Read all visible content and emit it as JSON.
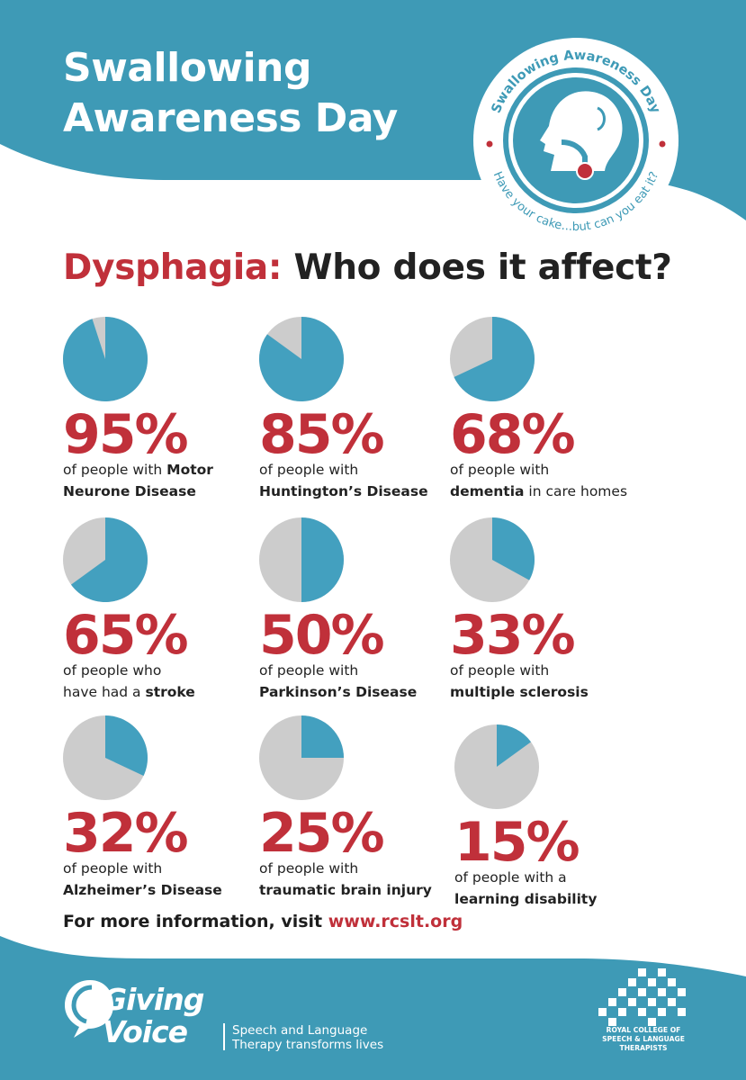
{
  "header": {
    "title_line1": "Swallowing",
    "title_line2": "Awareness Day",
    "bg_color": "#3e9ab6"
  },
  "badge": {
    "top_text": "Swallowing Awareness Day",
    "bottom_text": "Have your cake...but can you eat it?",
    "ring_color": "#3e9ab6",
    "dot_color": "#c0303a"
  },
  "subheading": {
    "highlight": "Dysphagia:",
    "rest": "Who does it affect?"
  },
  "colors": {
    "pie_fill": "#43a0bf",
    "pie_remainder": "#cccccc",
    "accent_red": "#c0303a",
    "text_dark": "#222222"
  },
  "stats": [
    {
      "percent_label": "95%",
      "value": 95,
      "line1_pre": "of people with ",
      "line1_bold": "Motor",
      "line1_post": "",
      "line2_pre": "",
      "line2_bold": "Neurone Disease",
      "line2_post": ""
    },
    {
      "percent_label": "85%",
      "value": 85,
      "line1_pre": "of people with",
      "line1_bold": "",
      "line1_post": "",
      "line2_pre": "",
      "line2_bold": "Huntington’s Disease",
      "line2_post": ""
    },
    {
      "percent_label": "68%",
      "value": 68,
      "line1_pre": "of people with",
      "line1_bold": "",
      "line1_post": "",
      "line2_pre": "",
      "line2_bold": "dementia",
      "line2_post": " in care homes"
    },
    {
      "percent_label": "65%",
      "value": 65,
      "line1_pre": "of people who",
      "line1_bold": "",
      "line1_post": "",
      "line2_pre": "have had a ",
      "line2_bold": "stroke",
      "line2_post": ""
    },
    {
      "percent_label": "50%",
      "value": 50,
      "line1_pre": "of people with",
      "line1_bold": "",
      "line1_post": "",
      "line2_pre": "",
      "line2_bold": "Parkinson’s Disease",
      "line2_post": ""
    },
    {
      "percent_label": "33%",
      "value": 33,
      "line1_pre": "of people with",
      "line1_bold": "",
      "line1_post": "",
      "line2_pre": "",
      "line2_bold": "multiple sclerosis",
      "line2_post": ""
    },
    {
      "percent_label": "32%",
      "value": 32,
      "line1_pre": "of people with",
      "line1_bold": "",
      "line1_post": "",
      "line2_pre": "",
      "line2_bold": "Alzheimer’s Disease",
      "line2_post": ""
    },
    {
      "percent_label": "25%",
      "value": 25,
      "line1_pre": "of people with",
      "line1_bold": "",
      "line1_post": "",
      "line2_pre": "",
      "line2_bold": "traumatic brain injury",
      "line2_post": ""
    },
    {
      "percent_label": "15%",
      "value": 15,
      "line1_pre": "of people with a",
      "line1_bold": "",
      "line1_post": "",
      "line2_pre": "",
      "line2_bold": "learning disability",
      "line2_post": ""
    }
  ],
  "footer": {
    "info_text": "For more information, visit ",
    "info_url": "www.rcslt.org",
    "bg_color": "#3e9ab6",
    "giving_voice": {
      "name_line1": "Giving",
      "name_line2": "Voice",
      "tagline_line1": "Speech and Language",
      "tagline_line2": "Therapy transforms lives"
    },
    "rcslt": {
      "line1": "ROYAL COLLEGE OF",
      "line2": "SPEECH & LANGUAGE",
      "line3": "THERAPISTS"
    }
  }
}
